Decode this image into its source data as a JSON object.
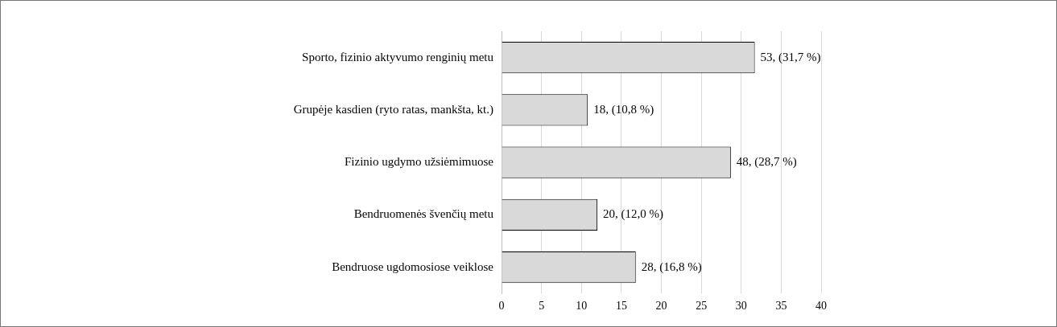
{
  "chart_data": {
    "type": "bar",
    "orientation": "horizontal",
    "categories": [
      "Sporto, fizinio aktyvumo renginių metu",
      "Grupėje kasdien (ryto ratas, mankšta, kt.)",
      "Fizinio ugdymo užsiėmimuose",
      "Bendruomenės švenčių metu",
      "Bendruose ugdomosiose veiklose"
    ],
    "values": [
      31.7,
      10.8,
      28.7,
      12.0,
      16.8
    ],
    "value_labels": [
      "53, (31,7 %)",
      "18, (10,8 %)",
      "48, (28,7 %)",
      "20, (12,0 %)",
      "28, (16,8 %)"
    ],
    "color": "#d9d9d9",
    "xlim": [
      0,
      40
    ],
    "xticks": [
      0,
      5,
      10,
      15,
      20,
      25,
      30,
      35,
      40
    ],
    "grid": "x",
    "legend": false
  }
}
